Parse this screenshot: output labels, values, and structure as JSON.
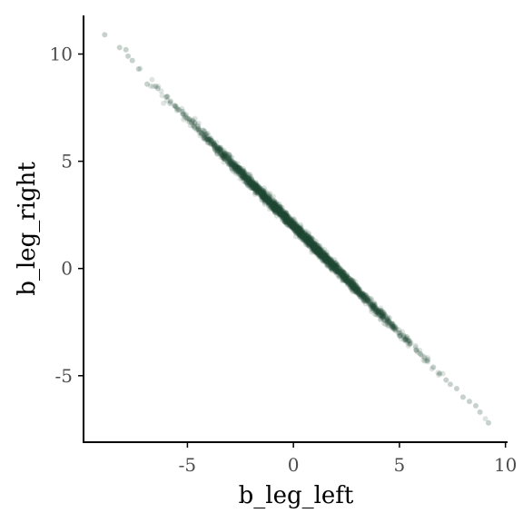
{
  "chart_data": {
    "type": "scatter",
    "xlabel": "b_leg_left",
    "ylabel": "b_leg_right",
    "xlim": [
      -9.9,
      10.1
    ],
    "ylim": [
      -8.1,
      11.8
    ],
    "xticks": [
      -5,
      0,
      5,
      10
    ],
    "yticks": [
      -5,
      0,
      5,
      10
    ],
    "xtick_labels": [
      "-5",
      "0",
      "5",
      "10"
    ],
    "ytick_labels": [
      "-5",
      "0",
      "5",
      "10"
    ],
    "grid": false,
    "point_color": "#1f4d38",
    "point_opacity": 0.15,
    "relationship": {
      "slope": -1.0,
      "intercept": 2.0,
      "x_range": [
        -9.0,
        9.2
      ]
    },
    "points": [
      [
        -8.9,
        10.9
      ],
      [
        -8.2,
        10.3
      ],
      [
        -7.9,
        10.2
      ],
      [
        -7.8,
        9.9
      ],
      [
        -7.6,
        9.7
      ],
      [
        -7.3,
        9.3
      ],
      [
        -6.9,
        8.6
      ],
      [
        -6.5,
        8.5
      ],
      [
        -6.4,
        8.4
      ],
      [
        -6.0,
        8.0
      ],
      [
        -5.8,
        7.8
      ],
      [
        -5.6,
        7.6
      ],
      [
        -5.4,
        7.4
      ],
      [
        -5.2,
        7.2
      ],
      [
        -5.0,
        7.0
      ],
      [
        -4.8,
        6.8
      ],
      [
        -4.5,
        6.5
      ],
      [
        -4.2,
        6.2
      ],
      [
        -4.0,
        6.0
      ],
      [
        -3.8,
        5.8
      ],
      [
        -3.5,
        5.5
      ],
      [
        -3.2,
        5.2
      ],
      [
        -3.0,
        5.0
      ],
      [
        -2.8,
        4.8
      ],
      [
        -2.5,
        4.5
      ],
      [
        -2.2,
        4.2
      ],
      [
        -2.0,
        4.0
      ],
      [
        -1.8,
        3.8
      ],
      [
        -1.5,
        3.5
      ],
      [
        -1.2,
        3.2
      ],
      [
        -1.0,
        3.0
      ],
      [
        -0.8,
        2.8
      ],
      [
        -0.5,
        2.5
      ],
      [
        -0.2,
        2.2
      ],
      [
        0.0,
        2.0
      ],
      [
        0.2,
        1.8
      ],
      [
        0.5,
        1.5
      ],
      [
        0.8,
        1.2
      ],
      [
        1.0,
        1.0
      ],
      [
        1.2,
        0.8
      ],
      [
        1.5,
        0.5
      ],
      [
        1.8,
        0.2
      ],
      [
        2.0,
        0.0
      ],
      [
        2.2,
        -0.2
      ],
      [
        2.5,
        -0.5
      ],
      [
        2.8,
        -0.8
      ],
      [
        3.0,
        -1.0
      ],
      [
        3.2,
        -1.2
      ],
      [
        3.5,
        -1.5
      ],
      [
        3.8,
        -1.8
      ],
      [
        4.0,
        -2.0
      ],
      [
        4.2,
        -2.2
      ],
      [
        4.5,
        -2.5
      ],
      [
        4.8,
        -2.8
      ],
      [
        5.0,
        -3.0
      ],
      [
        5.2,
        -3.2
      ],
      [
        5.5,
        -3.5
      ],
      [
        5.8,
        -3.8
      ],
      [
        6.0,
        -4.0
      ],
      [
        6.3,
        -4.3
      ],
      [
        6.6,
        -4.6
      ],
      [
        6.9,
        -4.9
      ],
      [
        7.2,
        -5.2
      ],
      [
        7.4,
        -5.4
      ],
      [
        7.7,
        -5.6
      ],
      [
        8.0,
        -6.0
      ],
      [
        8.3,
        -6.2
      ],
      [
        8.6,
        -6.4
      ],
      [
        8.8,
        -6.7
      ],
      [
        9.2,
        -7.2
      ]
    ]
  }
}
